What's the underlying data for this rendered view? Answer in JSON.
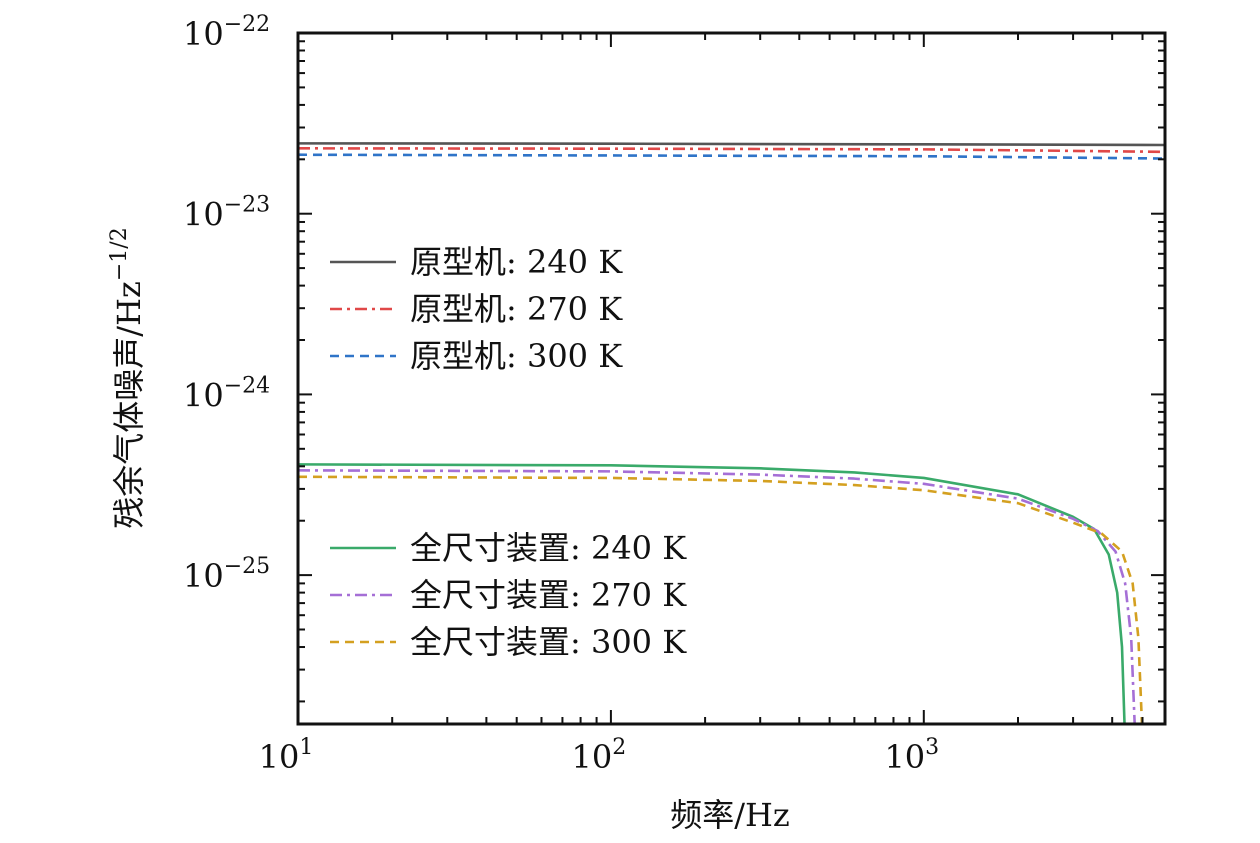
{
  "chart_data": {
    "type": "line",
    "x_scale": "log",
    "y_scale": "log",
    "xlim": [
      10,
      5900
    ],
    "ylim": [
      1.5e-26,
      1e-22
    ],
    "xlabel": "频率/Hz",
    "ylabel_main": "残余气体噪声/Hz",
    "ylabel_exp": "−1/2",
    "x_ticks": [
      {
        "value": 10,
        "base": "10",
        "exp": "1"
      },
      {
        "value": 100,
        "base": "10",
        "exp": "2"
      },
      {
        "value": 1000,
        "base": "10",
        "exp": "3"
      }
    ],
    "y_ticks": [
      {
        "value": 1e-22,
        "base": "10",
        "exp": "−22"
      },
      {
        "value": 1e-23,
        "base": "10",
        "exp": "−23"
      },
      {
        "value": 1e-24,
        "base": "10",
        "exp": "−24"
      },
      {
        "value": 1e-25,
        "base": "10",
        "exp": "−25"
      }
    ],
    "grid": false,
    "legend_groups": [
      {
        "placement": "upper-left",
        "series_indices": [
          0,
          1,
          2
        ]
      },
      {
        "placement": "lower-left",
        "series_indices": [
          3,
          4,
          5
        ]
      }
    ],
    "series": [
      {
        "name": "原型机: 240 K",
        "color": "#555555",
        "dash": "solid",
        "x": [
          10,
          100,
          1000,
          5900
        ],
        "y": [
          2.45e-23,
          2.44e-23,
          2.42e-23,
          2.4e-23
        ]
      },
      {
        "name": "原型机: 270 K",
        "color": "#e04848",
        "dash": "dashdot",
        "x": [
          10,
          100,
          1000,
          5900
        ],
        "y": [
          2.3e-23,
          2.29e-23,
          2.27e-23,
          2.2e-23
        ]
      },
      {
        "name": "原型机: 300 K",
        "color": "#2f74c8",
        "dash": "dashed",
        "x": [
          10,
          100,
          1000,
          5900
        ],
        "y": [
          2.12e-23,
          2.1e-23,
          2.08e-23,
          2.02e-23
        ]
      },
      {
        "name": "全尺寸装置: 240 K",
        "color": "#3aaa6a",
        "dash": "solid",
        "x": [
          10,
          100,
          300,
          600,
          1000,
          2000,
          3000,
          3500,
          3900,
          4150,
          4300,
          4380
        ],
        "y": [
          4.1e-25,
          4.05e-25,
          3.9e-25,
          3.7e-25,
          3.45e-25,
          2.8e-25,
          2.1e-25,
          1.8e-25,
          1.3e-25,
          8e-26,
          4e-26,
          1.5e-26
        ]
      },
      {
        "name": "全尺寸装置: 270 K",
        "color": "#a56fd6",
        "dash": "dashdot",
        "x": [
          10,
          100,
          300,
          600,
          1000,
          2000,
          3000,
          3600,
          4100,
          4400,
          4600,
          4720
        ],
        "y": [
          3.8e-25,
          3.75e-25,
          3.6e-25,
          3.42e-25,
          3.2e-25,
          2.65e-25,
          2.05e-25,
          1.75e-25,
          1.35e-25,
          9e-26,
          4.5e-26,
          1.5e-26
        ]
      },
      {
        "name": "全尺寸装置: 300 K",
        "color": "#d4a020",
        "dash": "dashed",
        "x": [
          10,
          100,
          300,
          600,
          1000,
          2000,
          3000,
          3700,
          4300,
          4650,
          4850,
          4980
        ],
        "y": [
          3.5e-25,
          3.45e-25,
          3.32e-25,
          3.15e-25,
          2.95e-25,
          2.5e-25,
          1.95e-25,
          1.7e-25,
          1.35e-25,
          9e-26,
          4.5e-26,
          1.5e-26
        ]
      }
    ]
  }
}
